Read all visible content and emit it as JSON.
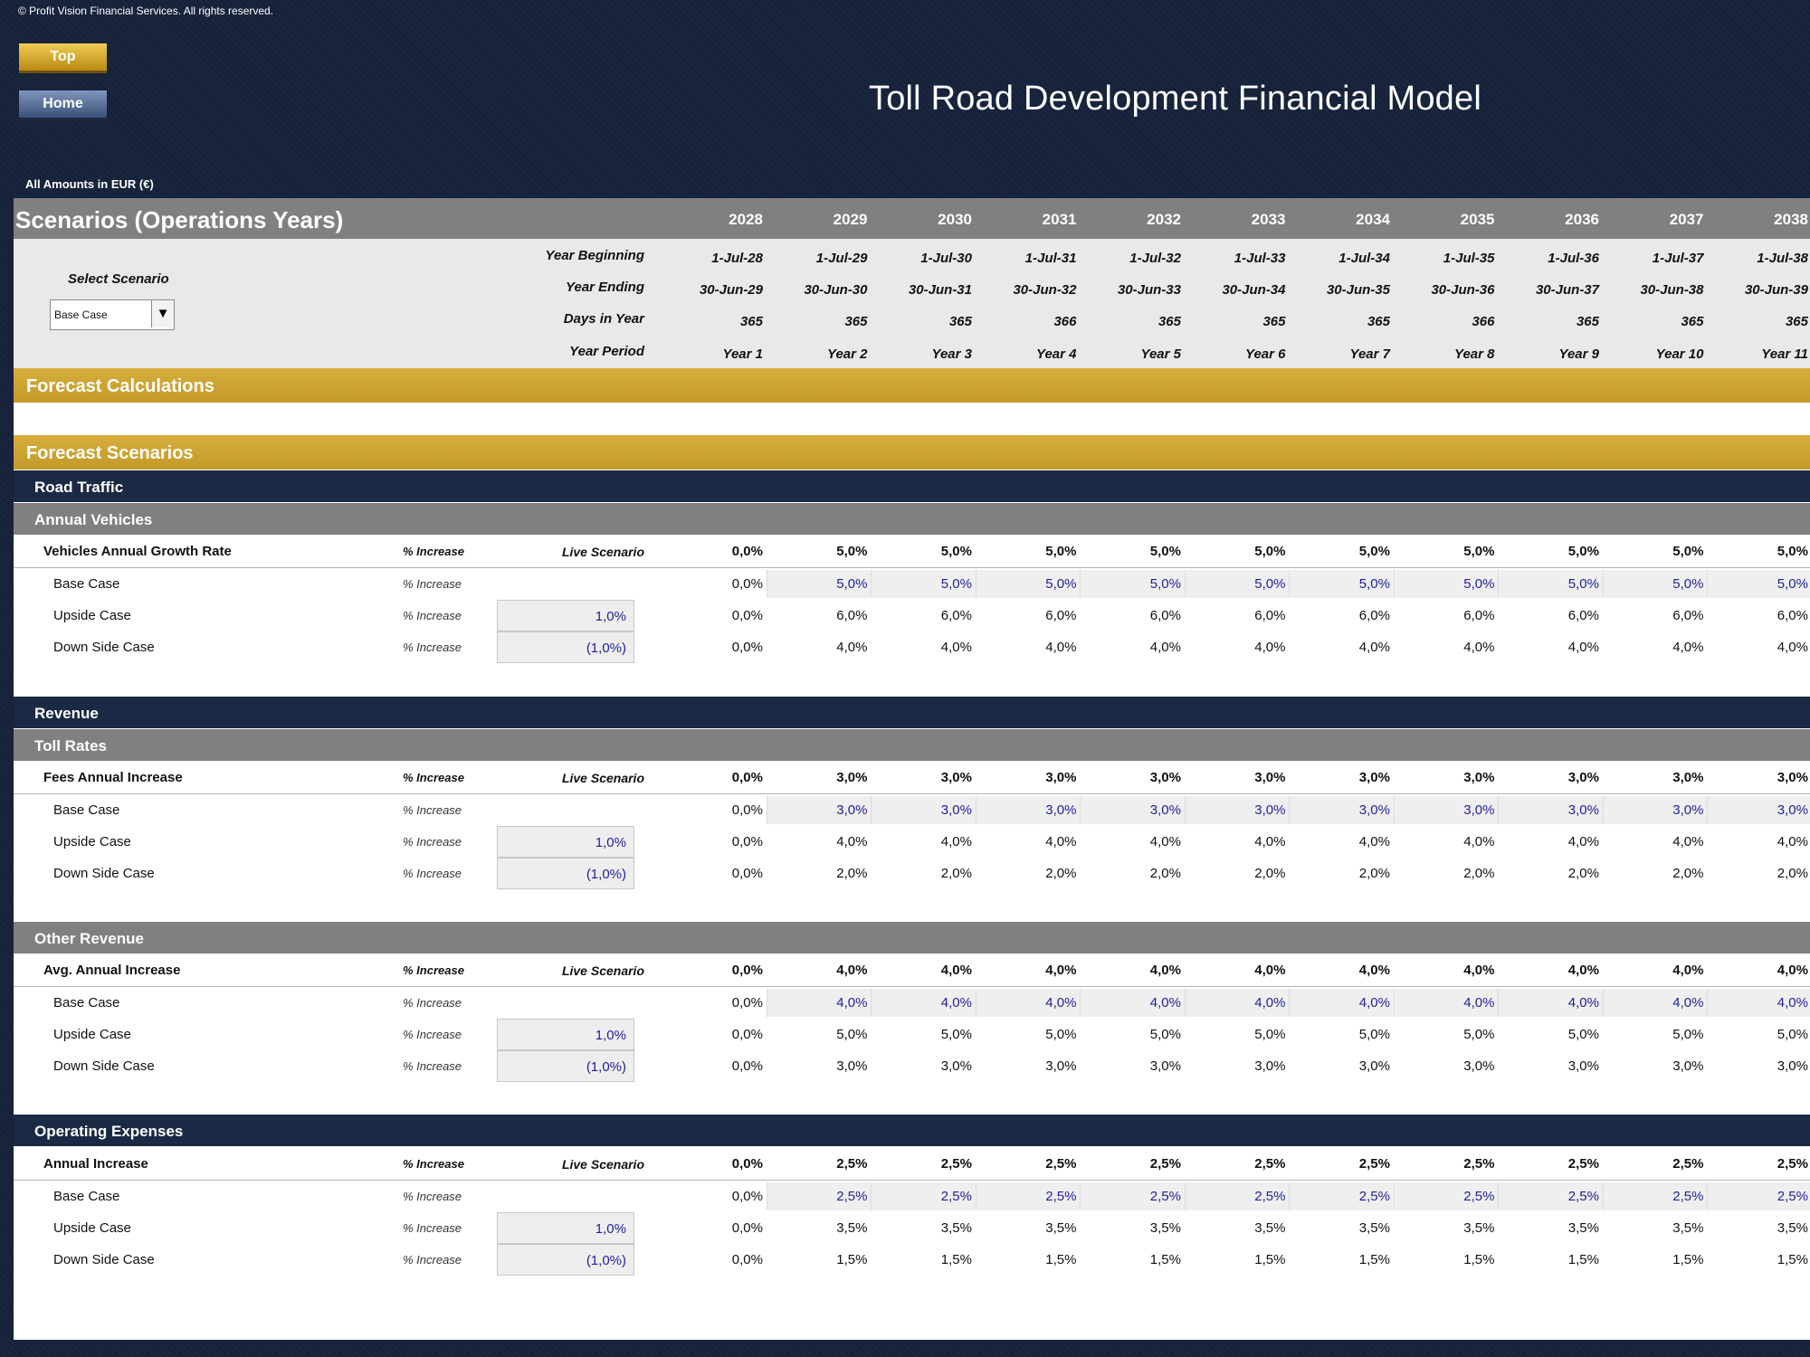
{
  "copyright": "© Profit Vision Financial Services. All rights reserved.",
  "buttons": {
    "top": "Top",
    "home": "Home"
  },
  "title": "Toll Road Development Financial Model",
  "amounts_label": "All Amounts in  EUR (€)",
  "header": {
    "title": "Scenarios (Operations Years)",
    "years": [
      "2028",
      "2029",
      "2030",
      "2031",
      "2032",
      "2033",
      "2034",
      "2035",
      "2036",
      "2037",
      "2038"
    ]
  },
  "info": {
    "select_label": "Select Scenario",
    "selected_scenario": "Base Case",
    "rows": [
      {
        "label": "Year Beginning",
        "values": [
          "1-Jul-28",
          "1-Jul-29",
          "1-Jul-30",
          "1-Jul-31",
          "1-Jul-32",
          "1-Jul-33",
          "1-Jul-34",
          "1-Jul-35",
          "1-Jul-36",
          "1-Jul-37",
          "1-Jul-38"
        ]
      },
      {
        "label": "Year Ending",
        "values": [
          "30-Jun-29",
          "30-Jun-30",
          "30-Jun-31",
          "30-Jun-32",
          "30-Jun-33",
          "30-Jun-34",
          "30-Jun-35",
          "30-Jun-36",
          "30-Jun-37",
          "30-Jun-38",
          "30-Jun-39"
        ]
      },
      {
        "label": "Days in Year",
        "values": [
          "365",
          "365",
          "365",
          "366",
          "365",
          "365",
          "365",
          "366",
          "365",
          "365",
          "365"
        ]
      },
      {
        "label": "Year Period",
        "values": [
          "Year 1",
          "Year 2",
          "Year 3",
          "Year 4",
          "Year 5",
          "Year 6",
          "Year 7",
          "Year 8",
          "Year 9",
          "Year 10",
          "Year 11"
        ]
      }
    ]
  },
  "sections": {
    "forecast_calculations": "Forecast Calculations",
    "forecast_scenarios": "Forecast Scenarios",
    "road_traffic": "Road Traffic",
    "annual_vehicles": "Annual Vehicles",
    "revenue": "Revenue",
    "toll_rates": "Toll Rates",
    "other_revenue": "Other Revenue",
    "operating_expenses": "Operating Expenses"
  },
  "blocks": {
    "vehicles": {
      "main": {
        "label": "Vehicles Annual Growth Rate",
        "unit": "% Increase",
        "live": "Live Scenario",
        "values": [
          "0,0%",
          "5,0%",
          "5,0%",
          "5,0%",
          "5,0%",
          "5,0%",
          "5,0%",
          "5,0%",
          "5,0%",
          "5,0%",
          "5,0%"
        ]
      },
      "base": {
        "label": "Base Case",
        "unit": "% Increase",
        "values": [
          "0,0%",
          "5,0%",
          "5,0%",
          "5,0%",
          "5,0%",
          "5,0%",
          "5,0%",
          "5,0%",
          "5,0%",
          "5,0%",
          "5,0%"
        ]
      },
      "upside": {
        "label": "Upside Case",
        "unit": "% Increase",
        "input": "1,0%",
        "values": [
          "0,0%",
          "6,0%",
          "6,0%",
          "6,0%",
          "6,0%",
          "6,0%",
          "6,0%",
          "6,0%",
          "6,0%",
          "6,0%",
          "6,0%"
        ]
      },
      "down": {
        "label": "Down Side Case",
        "unit": "% Increase",
        "input": "(1,0%)",
        "values": [
          "0,0%",
          "4,0%",
          "4,0%",
          "4,0%",
          "4,0%",
          "4,0%",
          "4,0%",
          "4,0%",
          "4,0%",
          "4,0%",
          "4,0%"
        ]
      }
    },
    "fees": {
      "main": {
        "label": "Fees Annual Increase",
        "unit": "% Increase",
        "live": "Live Scenario",
        "values": [
          "0,0%",
          "3,0%",
          "3,0%",
          "3,0%",
          "3,0%",
          "3,0%",
          "3,0%",
          "3,0%",
          "3,0%",
          "3,0%",
          "3,0%"
        ]
      },
      "base": {
        "label": "Base Case",
        "unit": "% Increase",
        "values": [
          "0,0%",
          "3,0%",
          "3,0%",
          "3,0%",
          "3,0%",
          "3,0%",
          "3,0%",
          "3,0%",
          "3,0%",
          "3,0%",
          "3,0%"
        ]
      },
      "upside": {
        "label": "Upside Case",
        "unit": "% Increase",
        "input": "1,0%",
        "values": [
          "0,0%",
          "4,0%",
          "4,0%",
          "4,0%",
          "4,0%",
          "4,0%",
          "4,0%",
          "4,0%",
          "4,0%",
          "4,0%",
          "4,0%"
        ]
      },
      "down": {
        "label": "Down Side Case",
        "unit": "% Increase",
        "input": "(1,0%)",
        "values": [
          "0,0%",
          "2,0%",
          "2,0%",
          "2,0%",
          "2,0%",
          "2,0%",
          "2,0%",
          "2,0%",
          "2,0%",
          "2,0%",
          "2,0%"
        ]
      }
    },
    "other": {
      "main": {
        "label": "Avg. Annual Increase",
        "unit": "% Increase",
        "live": "Live Scenario",
        "values": [
          "0,0%",
          "4,0%",
          "4,0%",
          "4,0%",
          "4,0%",
          "4,0%",
          "4,0%",
          "4,0%",
          "4,0%",
          "4,0%",
          "4,0%"
        ]
      },
      "base": {
        "label": "Base Case",
        "unit": "% Increase",
        "values": [
          "0,0%",
          "4,0%",
          "4,0%",
          "4,0%",
          "4,0%",
          "4,0%",
          "4,0%",
          "4,0%",
          "4,0%",
          "4,0%",
          "4,0%"
        ]
      },
      "upside": {
        "label": "Upside Case",
        "unit": "% Increase",
        "input": "1,0%",
        "values": [
          "0,0%",
          "5,0%",
          "5,0%",
          "5,0%",
          "5,0%",
          "5,0%",
          "5,0%",
          "5,0%",
          "5,0%",
          "5,0%",
          "5,0%"
        ]
      },
      "down": {
        "label": "Down Side Case",
        "unit": "% Increase",
        "input": "(1,0%)",
        "values": [
          "0,0%",
          "3,0%",
          "3,0%",
          "3,0%",
          "3,0%",
          "3,0%",
          "3,0%",
          "3,0%",
          "3,0%",
          "3,0%",
          "3,0%"
        ]
      }
    },
    "opex": {
      "main": {
        "label": "Annual Increase",
        "unit": "% Increase",
        "live": "Live Scenario",
        "values": [
          "0,0%",
          "2,5%",
          "2,5%",
          "2,5%",
          "2,5%",
          "2,5%",
          "2,5%",
          "2,5%",
          "2,5%",
          "2,5%",
          "2,5%"
        ]
      },
      "base": {
        "label": "Base Case",
        "unit": "% Increase",
        "values": [
          "0,0%",
          "2,5%",
          "2,5%",
          "2,5%",
          "2,5%",
          "2,5%",
          "2,5%",
          "2,5%",
          "2,5%",
          "2,5%",
          "2,5%"
        ]
      },
      "upside": {
        "label": "Upside Case",
        "unit": "% Increase",
        "input": "1,0%",
        "values": [
          "0,0%",
          "3,5%",
          "3,5%",
          "3,5%",
          "3,5%",
          "3,5%",
          "3,5%",
          "3,5%",
          "3,5%",
          "3,5%",
          "3,5%"
        ]
      },
      "down": {
        "label": "Down Side Case",
        "unit": "% Increase",
        "input": "(1,0%)",
        "values": [
          "0,0%",
          "1,5%",
          "1,5%",
          "1,5%",
          "1,5%",
          "1,5%",
          "1,5%",
          "1,5%",
          "1,5%",
          "1,5%",
          "1,5%"
        ]
      }
    }
  },
  "colors": {
    "navy": "#1b2a44",
    "gold": "#d6ae3d",
    "grey": "#808080",
    "input_blue": "#1f1f9c"
  }
}
